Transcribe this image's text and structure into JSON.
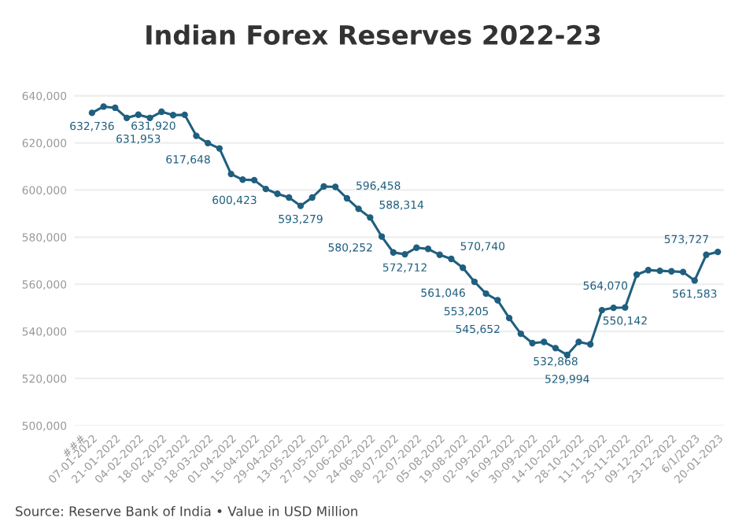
{
  "chart_data": {
    "type": "line",
    "title": "Indian Forex Reserves 2022-23",
    "categories": [
      "###",
      "07-01-2022",
      null,
      "21-01-2022",
      null,
      "04-02-2022",
      null,
      "18-02-2022",
      null,
      "04-03-2022",
      null,
      "18-03-2022",
      null,
      "01-04-2022",
      null,
      "15-04-2022",
      null,
      "29-04-2022",
      null,
      "13-05-2022",
      null,
      "27-05-2022",
      null,
      "10-06-2022",
      null,
      "24-06-2022",
      null,
      "08-07-2022",
      null,
      "22-07-2022",
      null,
      "05-08-2022",
      null,
      "19-08-2022",
      null,
      "02-09-2022",
      null,
      "16-09-2022",
      null,
      "30-09-2022",
      null,
      "14-10-2022",
      null,
      "28-10-2022",
      null,
      "11-11-2022",
      null,
      "25-11-2022",
      null,
      "09-12-2022",
      null,
      "23-12-2022",
      null,
      "6/1/2023",
      null,
      "20-01-2023"
    ],
    "series": [
      {
        "color": "#1f5f7f",
        "values": [
          null,
          632736,
          635400,
          634900,
          630600,
          631953,
          630600,
          633200,
          631800,
          631920,
          623000,
          619900,
          617648,
          606800,
          604400,
          604200,
          600423,
          598400,
          596800,
          593279,
          596800,
          601500,
          601300,
          596458,
          592000,
          588314,
          580252,
          573500,
          572712,
          575500,
          575000,
          572500,
          570740,
          567000,
          561046,
          556000,
          553205,
          545652,
          539000,
          535000,
          535500,
          532868,
          529994,
          535500,
          534500,
          549000,
          550000,
          550142,
          564070,
          566000,
          565700,
          565500,
          565200,
          561583,
          572500,
          573727
        ],
        "value_labels": [
          null,
          "632,736",
          null,
          null,
          null,
          "631,953",
          null,
          null,
          null,
          "631,920",
          null,
          null,
          "617,648",
          null,
          null,
          null,
          "600,423",
          null,
          null,
          "593,279",
          null,
          null,
          null,
          "596,458",
          null,
          "588,314",
          "580,252",
          null,
          "572,712",
          null,
          null,
          null,
          "570,740",
          null,
          "561,046",
          null,
          "553,205",
          "545,652",
          null,
          null,
          null,
          "532,868",
          "529,994",
          null,
          null,
          null,
          null,
          "550,142",
          "564,070",
          null,
          null,
          null,
          null,
          "561,583",
          null,
          "573,727"
        ]
      }
    ],
    "ylim": [
      500000,
      640000
    ],
    "yticks": [
      {
        "value": 500000,
        "label": "500,000"
      },
      {
        "value": 520000,
        "label": "520,000"
      },
      {
        "value": 540000,
        "label": "540,000"
      },
      {
        "value": 560000,
        "label": "560,000"
      },
      {
        "value": 580000,
        "label": "580,000"
      },
      {
        "value": 600000,
        "label": "600,000"
      },
      {
        "value": 620000,
        "label": "620,000"
      },
      {
        "value": 640000,
        "label": "640,000"
      }
    ],
    "grid": "y",
    "marker": "circle",
    "line_style": "solid",
    "annotations": [
      "Source: Reserve Bank of India • Value in USD Million"
    ]
  }
}
